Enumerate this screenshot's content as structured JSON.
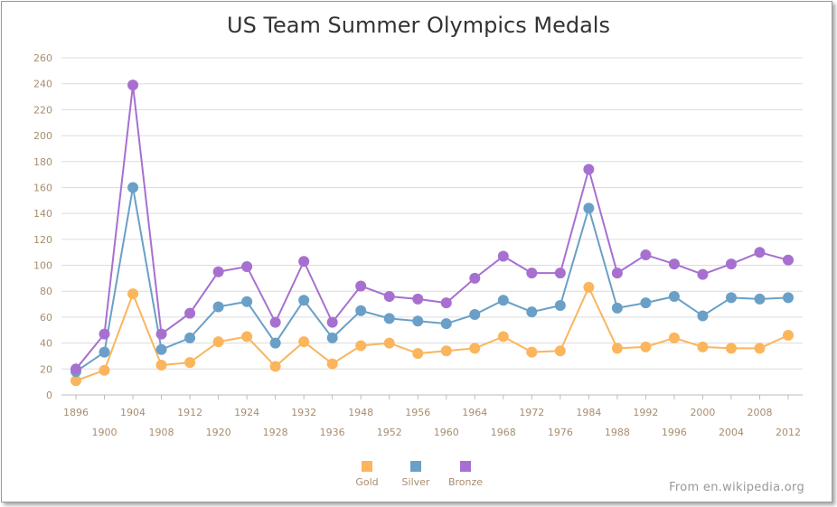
{
  "chart_data": {
    "type": "line",
    "stacked": true,
    "title": "US Team Summer Olympics Medals",
    "xlabel": "",
    "ylabel": "",
    "ylim": [
      0,
      260
    ],
    "yticks": [
      0,
      20,
      40,
      60,
      80,
      100,
      120,
      140,
      160,
      180,
      200,
      220,
      240,
      260
    ],
    "grid": true,
    "legend_position": "bottom",
    "categories": [
      "1896",
      "1900",
      "1904",
      "1908",
      "1912",
      "1920",
      "1924",
      "1928",
      "1932",
      "1936",
      "1948",
      "1952",
      "1956",
      "1960",
      "1964",
      "1968",
      "1972",
      "1976",
      "1984",
      "1988",
      "1992",
      "1996",
      "2000",
      "2004",
      "2008",
      "2012"
    ],
    "series": [
      {
        "name": "Gold",
        "color": "#fbb55c",
        "values": [
          11,
          19,
          78,
          23,
          25,
          41,
          45,
          22,
          41,
          24,
          38,
          40,
          32,
          34,
          36,
          45,
          33,
          34,
          83,
          36,
          37,
          44,
          37,
          36,
          36,
          46
        ]
      },
      {
        "name": "Silver",
        "color": "#6aa0c7",
        "values": [
          7,
          14,
          82,
          12,
          19,
          27,
          27,
          18,
          32,
          20,
          27,
          19,
          25,
          21,
          26,
          28,
          31,
          35,
          61,
          31,
          34,
          32,
          24,
          39,
          38,
          29
        ]
      },
      {
        "name": "Bronze",
        "color": "#a770d0",
        "values": [
          2,
          14,
          79,
          12,
          19,
          27,
          27,
          16,
          30,
          12,
          19,
          17,
          17,
          16,
          28,
          34,
          30,
          25,
          30,
          27,
          37,
          25,
          32,
          26,
          36,
          29
        ]
      }
    ]
  },
  "footer": "From en.wikipedia.org"
}
